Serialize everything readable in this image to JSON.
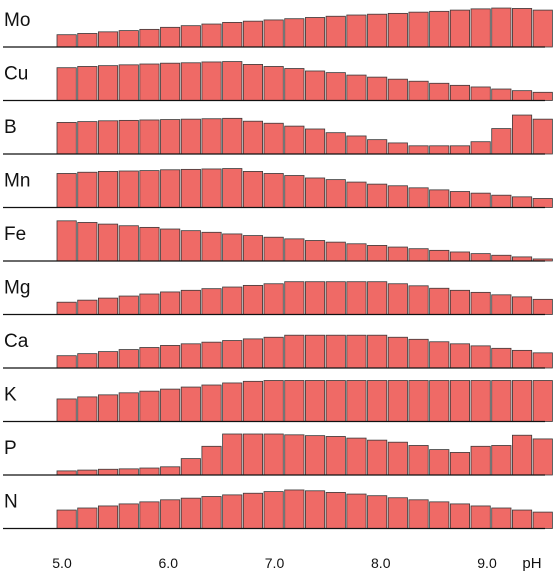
{
  "chart_data": {
    "type": "bar",
    "xlabel": "pH",
    "x_ticks": [
      "5.0",
      "6.0",
      "7.0",
      "8.0",
      "9.0"
    ],
    "x_range": [
      5.0,
      9.0
    ],
    "bar_color": "#ef6a66",
    "bar_edge_color": "#3a3a3a",
    "grid": false,
    "legend": false,
    "series": [
      {
        "name": "Mo",
        "values": [
          0.3,
          0.33,
          0.37,
          0.4,
          0.43,
          0.48,
          0.52,
          0.56,
          0.6,
          0.63,
          0.66,
          0.69,
          0.72,
          0.75,
          0.78,
          0.8,
          0.82,
          0.85,
          0.87,
          0.9,
          0.93,
          0.95,
          0.94,
          0.9
        ]
      },
      {
        "name": "Cu",
        "values": [
          0.8,
          0.83,
          0.85,
          0.87,
          0.89,
          0.91,
          0.92,
          0.94,
          0.95,
          0.88,
          0.83,
          0.78,
          0.72,
          0.68,
          0.62,
          0.57,
          0.52,
          0.47,
          0.42,
          0.37,
          0.33,
          0.28,
          0.24,
          0.2
        ]
      },
      {
        "name": "B",
        "values": [
          0.77,
          0.79,
          0.81,
          0.82,
          0.83,
          0.84,
          0.85,
          0.86,
          0.87,
          0.8,
          0.75,
          0.68,
          0.61,
          0.52,
          0.44,
          0.35,
          0.27,
          0.2,
          0.2,
          0.2,
          0.3,
          0.62,
          0.95,
          0.85
        ]
      },
      {
        "name": "Mn",
        "values": [
          0.83,
          0.86,
          0.88,
          0.89,
          0.9,
          0.92,
          0.93,
          0.94,
          0.95,
          0.88,
          0.83,
          0.78,
          0.72,
          0.68,
          0.62,
          0.57,
          0.53,
          0.48,
          0.43,
          0.39,
          0.35,
          0.3,
          0.26,
          0.22
        ]
      },
      {
        "name": "Fe",
        "values": [
          0.98,
          0.94,
          0.9,
          0.86,
          0.82,
          0.78,
          0.74,
          0.7,
          0.66,
          0.62,
          0.58,
          0.54,
          0.5,
          0.46,
          0.42,
          0.38,
          0.34,
          0.3,
          0.26,
          0.22,
          0.18,
          0.14,
          0.1,
          0.05
        ]
      },
      {
        "name": "Mg",
        "values": [
          0.3,
          0.35,
          0.4,
          0.45,
          0.5,
          0.55,
          0.59,
          0.63,
          0.67,
          0.71,
          0.75,
          0.8,
          0.8,
          0.8,
          0.8,
          0.8,
          0.75,
          0.7,
          0.64,
          0.59,
          0.54,
          0.48,
          0.43,
          0.37
        ]
      },
      {
        "name": "Ca",
        "values": [
          0.3,
          0.35,
          0.4,
          0.45,
          0.5,
          0.55,
          0.59,
          0.63,
          0.67,
          0.71,
          0.75,
          0.8,
          0.8,
          0.8,
          0.8,
          0.8,
          0.75,
          0.7,
          0.64,
          0.59,
          0.54,
          0.48,
          0.43,
          0.37
        ]
      },
      {
        "name": "K",
        "values": [
          0.55,
          0.6,
          0.65,
          0.7,
          0.74,
          0.79,
          0.84,
          0.89,
          0.94,
          0.98,
          1.0,
          1.0,
          1.0,
          1.0,
          1.0,
          1.0,
          1.0,
          1.0,
          1.0,
          1.0,
          1.0,
          1.0,
          1.0,
          1.0
        ]
      },
      {
        "name": "P",
        "values": [
          0.1,
          0.12,
          0.14,
          0.15,
          0.17,
          0.2,
          0.4,
          0.7,
          1.0,
          1.0,
          1.0,
          0.98,
          0.96,
          0.94,
          0.9,
          0.85,
          0.8,
          0.72,
          0.62,
          0.55,
          0.7,
          0.72,
          0.97,
          0.88
        ]
      },
      {
        "name": "N",
        "values": [
          0.45,
          0.5,
          0.55,
          0.6,
          0.65,
          0.7,
          0.74,
          0.78,
          0.82,
          0.86,
          0.9,
          0.94,
          0.92,
          0.88,
          0.84,
          0.8,
          0.75,
          0.7,
          0.65,
          0.6,
          0.55,
          0.5,
          0.45,
          0.4
        ]
      }
    ]
  }
}
